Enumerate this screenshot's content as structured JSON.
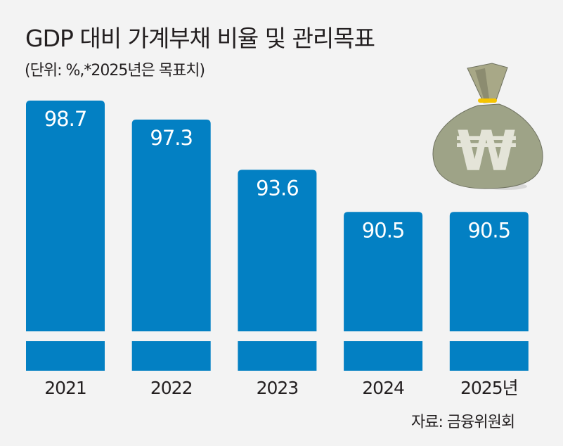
{
  "chart_data": {
    "type": "bar",
    "title": "GDP 대비 가계부채 비율 및 관리목표",
    "subtitle": "(단위: %,*2025년은 목표치)",
    "categories": [
      "2021",
      "2022",
      "2023",
      "2024",
      "2025년"
    ],
    "values": [
      98.7,
      97.3,
      93.6,
      90.5,
      90.5
    ],
    "data_labels": [
      "98.7",
      "97.3",
      "93.6",
      "90.5",
      "90.5"
    ],
    "xlabel": "",
    "ylabel": "",
    "axis_break": true,
    "grid": false,
    "bar_color": "#0380c3",
    "label_color": "#ffffff",
    "source": "자료: 금융위원회",
    "illustration": "money-bag-won-icon"
  }
}
